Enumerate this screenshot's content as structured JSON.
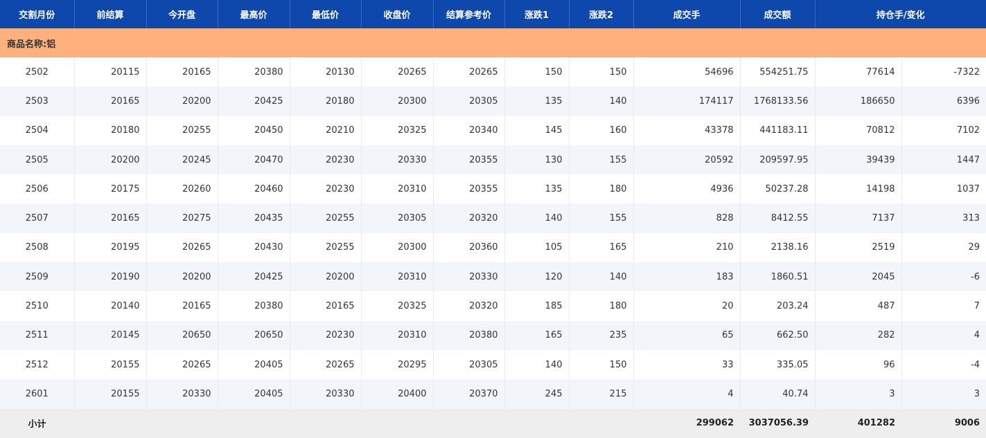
{
  "table": {
    "header": [
      "交割月份",
      "前结算",
      "今开盘",
      "最高价",
      "最低价",
      "收盘价",
      "结算参考价",
      "涨跌1",
      "涨跌2",
      "成交手",
      "成交额",
      "持仓手/变化"
    ],
    "group": "商品名称:铝",
    "rows": [
      [
        "2502",
        "20115",
        "20165",
        "20380",
        "20130",
        "20265",
        "20265",
        "150",
        "150",
        "54696",
        "554251.75",
        "77614",
        "-7322"
      ],
      [
        "2503",
        "20165",
        "20200",
        "20425",
        "20180",
        "20300",
        "20305",
        "135",
        "140",
        "174117",
        "1768133.56",
        "186650",
        "6396"
      ],
      [
        "2504",
        "20180",
        "20255",
        "20450",
        "20210",
        "20325",
        "20340",
        "145",
        "160",
        "43378",
        "441183.11",
        "70812",
        "7102"
      ],
      [
        "2505",
        "20200",
        "20245",
        "20470",
        "20230",
        "20330",
        "20355",
        "130",
        "155",
        "20592",
        "209597.95",
        "39439",
        "1447"
      ],
      [
        "2506",
        "20175",
        "20260",
        "20460",
        "20230",
        "20310",
        "20355",
        "135",
        "180",
        "4936",
        "50237.28",
        "14198",
        "1037"
      ],
      [
        "2507",
        "20165",
        "20275",
        "20435",
        "20255",
        "20305",
        "20320",
        "140",
        "155",
        "828",
        "8412.55",
        "7137",
        "313"
      ],
      [
        "2508",
        "20195",
        "20265",
        "20430",
        "20255",
        "20300",
        "20360",
        "105",
        "165",
        "210",
        "2138.16",
        "2519",
        "29"
      ],
      [
        "2509",
        "20190",
        "20200",
        "20425",
        "20200",
        "20310",
        "20330",
        "120",
        "140",
        "183",
        "1860.51",
        "2045",
        "-6"
      ],
      [
        "2510",
        "20140",
        "20165",
        "20380",
        "20165",
        "20325",
        "20320",
        "185",
        "180",
        "20",
        "203.24",
        "487",
        "7"
      ],
      [
        "2511",
        "20145",
        "20650",
        "20650",
        "20230",
        "20310",
        "20380",
        "165",
        "235",
        "65",
        "662.50",
        "282",
        "4"
      ],
      [
        "2512",
        "20155",
        "20265",
        "20405",
        "20265",
        "20295",
        "20305",
        "140",
        "150",
        "33",
        "335.05",
        "96",
        "-4"
      ],
      [
        "2601",
        "20155",
        "20330",
        "20405",
        "20330",
        "20400",
        "20370",
        "245",
        "215",
        "4",
        "40.74",
        "3",
        "3"
      ]
    ],
    "subtotal": {
      "label": "小计",
      "values": [
        "299062",
        "3037056.39",
        "401282",
        "9006"
      ]
    }
  }
}
